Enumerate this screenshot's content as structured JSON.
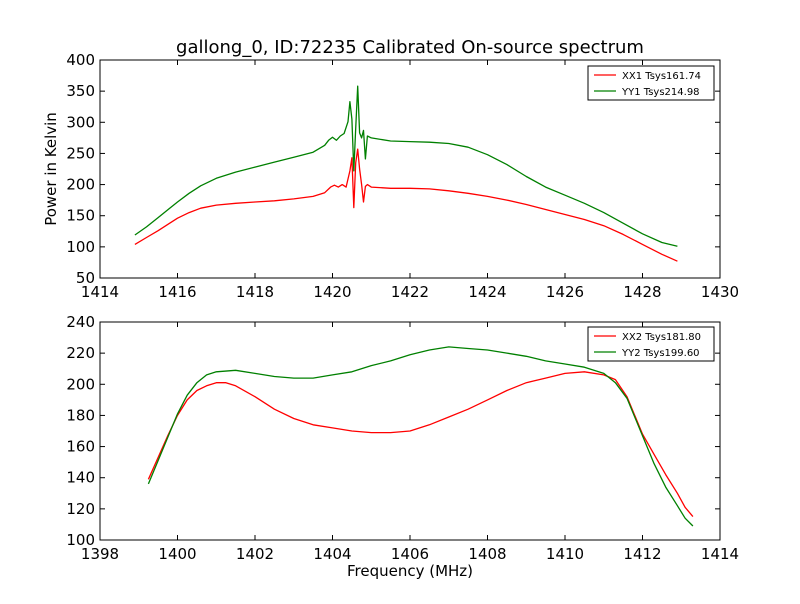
{
  "figure": {
    "title": "gallong_0, ID:72235 Calibrated On-source spectrum"
  },
  "colors": {
    "red": "#ff0000",
    "green": "#008000",
    "axes": "#000000",
    "background": "#ffffff"
  },
  "chart_data": [
    {
      "type": "line",
      "title": "gallong_0, ID:72235 Calibrated On-source spectrum",
      "xlabel": "",
      "ylabel": "Power in Kelvin",
      "xlim": [
        1414,
        1430
      ],
      "ylim": [
        50,
        400
      ],
      "xticks": [
        "1414",
        "1416",
        "1418",
        "1420",
        "1422",
        "1424",
        "1426",
        "1428",
        "1430"
      ],
      "yticks": [
        "50",
        "100",
        "150",
        "200",
        "250",
        "300",
        "350",
        "400"
      ],
      "grid": false,
      "legend_position": "top-right",
      "series": [
        {
          "name": "XX1 Tsys161.74",
          "color": "#ff0000",
          "x": [
            1414.9,
            1415.2,
            1415.5,
            1415.8,
            1416.0,
            1416.3,
            1416.6,
            1417.0,
            1417.5,
            1418.0,
            1418.5,
            1419.0,
            1419.5,
            1419.8,
            1419.95,
            1420.05,
            1420.15,
            1420.25,
            1420.35,
            1420.45,
            1420.5,
            1420.55,
            1420.6,
            1420.65,
            1420.7,
            1420.75,
            1420.8,
            1420.85,
            1420.9,
            1421.0,
            1421.5,
            1422.0,
            1422.5,
            1423.0,
            1423.5,
            1424.0,
            1424.5,
            1425.0,
            1425.5,
            1426.0,
            1426.5,
            1427.0,
            1427.5,
            1428.0,
            1428.5,
            1428.9
          ],
          "y": [
            104,
            115,
            126,
            138,
            146,
            155,
            162,
            167,
            170,
            172,
            174,
            177,
            181,
            187,
            196,
            199,
            196,
            200,
            196,
            222,
            243,
            163,
            235,
            257,
            225,
            200,
            172,
            197,
            200,
            196,
            194,
            194,
            193,
            190,
            186,
            181,
            175,
            168,
            160,
            152,
            144,
            134,
            120,
            104,
            88,
            77
          ]
        },
        {
          "name": "YY1 Tsys214.98",
          "color": "#008000",
          "x": [
            1414.9,
            1415.2,
            1415.5,
            1415.8,
            1416.0,
            1416.3,
            1416.6,
            1417.0,
            1417.5,
            1418.0,
            1418.5,
            1419.0,
            1419.5,
            1419.8,
            1419.9,
            1420.0,
            1420.1,
            1420.2,
            1420.3,
            1420.4,
            1420.45,
            1420.5,
            1420.55,
            1420.6,
            1420.65,
            1420.7,
            1420.75,
            1420.8,
            1420.85,
            1420.9,
            1421.0,
            1421.5,
            1422.0,
            1422.5,
            1423.0,
            1423.5,
            1424.0,
            1424.5,
            1425.0,
            1425.5,
            1426.0,
            1426.5,
            1427.0,
            1427.5,
            1428.0,
            1428.5,
            1428.9
          ],
          "y": [
            119,
            132,
            147,
            162,
            172,
            186,
            198,
            210,
            220,
            228,
            236,
            244,
            252,
            263,
            271,
            276,
            271,
            278,
            282,
            301,
            333,
            305,
            222,
            290,
            358,
            283,
            275,
            287,
            241,
            278,
            275,
            270,
            269,
            268,
            266,
            260,
            248,
            232,
            213,
            196,
            183,
            170,
            155,
            138,
            121,
            107,
            101
          ]
        }
      ]
    },
    {
      "type": "line",
      "title": "",
      "xlabel": "Frequency (MHz)",
      "ylabel": "",
      "xlim": [
        1398,
        1414
      ],
      "ylim": [
        100,
        240
      ],
      "xticks": [
        "1398",
        "1400",
        "1402",
        "1404",
        "1406",
        "1408",
        "1410",
        "1412",
        "1414"
      ],
      "yticks": [
        "100",
        "120",
        "140",
        "160",
        "180",
        "200",
        "220",
        "240"
      ],
      "grid": false,
      "legend_position": "top-right",
      "series": [
        {
          "name": "XX2 Tsys181.80",
          "color": "#ff0000",
          "x": [
            1399.25,
            1399.5,
            1399.75,
            1400.0,
            1400.25,
            1400.5,
            1400.75,
            1401.0,
            1401.25,
            1401.5,
            1402.0,
            1402.5,
            1403.0,
            1403.5,
            1404.0,
            1404.5,
            1405.0,
            1405.5,
            1406.0,
            1406.5,
            1407.0,
            1407.5,
            1408.0,
            1408.5,
            1409.0,
            1409.5,
            1410.0,
            1410.5,
            1411.0,
            1411.3,
            1411.6,
            1412.0,
            1412.3,
            1412.6,
            1412.9,
            1413.1,
            1413.3
          ],
          "y": [
            139,
            153,
            167,
            180,
            190,
            196,
            199,
            201,
            201,
            199,
            192,
            184,
            178,
            174,
            172,
            170,
            169,
            169,
            170,
            174,
            179,
            184,
            190,
            196,
            201,
            204,
            207,
            208,
            206,
            203,
            192,
            168,
            155,
            142,
            130,
            121,
            115
          ]
        },
        {
          "name": "YY2 Tsys199.60",
          "color": "#008000",
          "x": [
            1399.25,
            1399.5,
            1399.75,
            1400.0,
            1400.25,
            1400.5,
            1400.75,
            1401.0,
            1401.5,
            1402.0,
            1402.5,
            1403.0,
            1403.5,
            1404.0,
            1404.5,
            1405.0,
            1405.5,
            1406.0,
            1406.5,
            1407.0,
            1407.5,
            1408.0,
            1408.5,
            1409.0,
            1409.5,
            1410.0,
            1410.5,
            1411.0,
            1411.3,
            1411.6,
            1412.0,
            1412.3,
            1412.6,
            1412.9,
            1413.1,
            1413.3
          ],
          "y": [
            136,
            151,
            166,
            181,
            193,
            201,
            206,
            208,
            209,
            207,
            205,
            204,
            204,
            206,
            208,
            212,
            215,
            219,
            222,
            224,
            223,
            222,
            220,
            218,
            215,
            213,
            211,
            207,
            201,
            191,
            167,
            149,
            134,
            122,
            114,
            109
          ]
        }
      ]
    }
  ]
}
